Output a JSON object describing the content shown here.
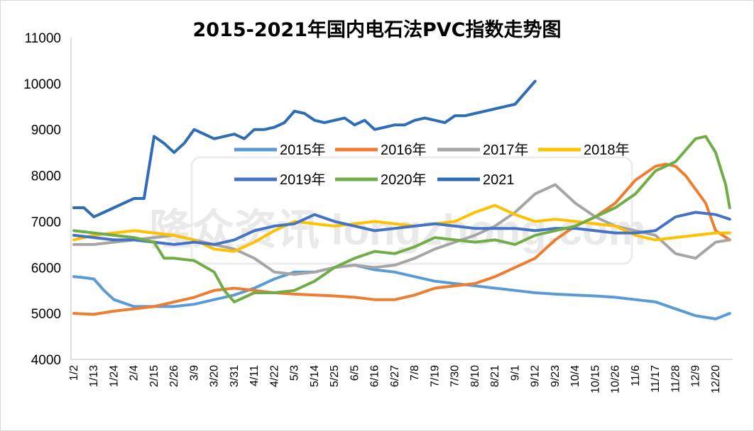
{
  "chart_data": {
    "type": "line",
    "title": "2015-2021年国内电石法PVC指数走势图",
    "ylim": [
      4000,
      11000
    ],
    "yticks": [
      4000,
      5000,
      6000,
      7000,
      8000,
      9000,
      10000,
      11000
    ],
    "xticks": [
      "1/2",
      "1/13",
      "1/24",
      "2/4",
      "2/15",
      "2/26",
      "3/9",
      "3/20",
      "3/31",
      "4/11",
      "4/22",
      "5/3",
      "5/14",
      "5/25",
      "6/5",
      "6/16",
      "6/27",
      "7/8",
      "7/19",
      "7/30",
      "8/10",
      "8/21",
      "9/1",
      "9/12",
      "9/23",
      "10/4",
      "10/15",
      "10/26",
      "11/6",
      "11/17",
      "11/28",
      "12/9",
      "12/20"
    ],
    "grid": false,
    "legend_position": "center-right",
    "series": [
      {
        "name": "2015年",
        "color": "#5b9bd5",
        "x": [
          0,
          0.5,
          1,
          1.5,
          2,
          3,
          4,
          5,
          6,
          7,
          8,
          9,
          10,
          11,
          12,
          13,
          14,
          15,
          16,
          17,
          18,
          19,
          20,
          21,
          22,
          23,
          24,
          25,
          26,
          27,
          28,
          29,
          30,
          31,
          32,
          32.7
        ],
        "y": [
          5800,
          5780,
          5750,
          5500,
          5300,
          5150,
          5150,
          5150,
          5200,
          5300,
          5400,
          5550,
          5750,
          5900,
          5900,
          6000,
          6050,
          5950,
          5900,
          5800,
          5700,
          5650,
          5600,
          5550,
          5500,
          5450,
          5420,
          5400,
          5380,
          5350,
          5300,
          5250,
          5100,
          4950,
          4880,
          5000
        ]
      },
      {
        "name": "2016年",
        "color": "#ed7d31",
        "x": [
          0,
          1,
          2,
          3,
          4,
          5,
          6,
          7,
          8,
          9,
          10,
          11,
          12,
          13,
          14,
          15,
          16,
          17,
          18,
          19,
          20,
          21,
          22,
          23,
          24,
          25,
          26,
          27,
          28,
          29,
          29.5,
          30,
          30.5,
          31,
          31.5,
          32,
          32.7
        ],
        "y": [
          5000,
          4980,
          5050,
          5100,
          5150,
          5250,
          5350,
          5500,
          5550,
          5500,
          5450,
          5420,
          5400,
          5380,
          5350,
          5300,
          5300,
          5400,
          5550,
          5600,
          5650,
          5800,
          6000,
          6200,
          6600,
          6900,
          7100,
          7400,
          7900,
          8200,
          8250,
          8200,
          8000,
          7700,
          7400,
          6800,
          6600
        ]
      },
      {
        "name": "2017年",
        "color": "#a5a5a5",
        "x": [
          0,
          1,
          2,
          3,
          4,
          5,
          6,
          7,
          8,
          9,
          10,
          11,
          12,
          13,
          14,
          15,
          16,
          17,
          18,
          19,
          20,
          21,
          22,
          23,
          24,
          25,
          26,
          27,
          28,
          29,
          30,
          31,
          32,
          32.7
        ],
        "y": [
          6500,
          6500,
          6550,
          6600,
          6650,
          6700,
          6600,
          6500,
          6400,
          6200,
          5900,
          5850,
          5900,
          6000,
          6050,
          6000,
          6050,
          6200,
          6400,
          6550,
          6700,
          6900,
          7200,
          7600,
          7800,
          7400,
          7100,
          6900,
          6800,
          6700,
          6300,
          6200,
          6550,
          6600
        ]
      },
      {
        "name": "2018年",
        "color": "#ffc000",
        "x": [
          0,
          1,
          2,
          3,
          4,
          5,
          6,
          7,
          8,
          9,
          10,
          11,
          12,
          13,
          14,
          15,
          16,
          17,
          18,
          19,
          20,
          21,
          22,
          23,
          24,
          25,
          26,
          27,
          28,
          29,
          30,
          31,
          32,
          32.7
        ],
        "y": [
          6600,
          6700,
          6750,
          6800,
          6750,
          6700,
          6600,
          6400,
          6350,
          6550,
          6800,
          7000,
          6950,
          6900,
          6950,
          7000,
          6950,
          6900,
          6950,
          7000,
          7200,
          7350,
          7150,
          7000,
          7050,
          7000,
          6950,
          6900,
          6700,
          6600,
          6650,
          6700,
          6750,
          6750
        ]
      },
      {
        "name": "2019年",
        "color": "#4472c4",
        "x": [
          0,
          1,
          2,
          3,
          4,
          5,
          6,
          7,
          8,
          9,
          10,
          11,
          12,
          13,
          14,
          15,
          16,
          17,
          18,
          19,
          20,
          21,
          22,
          23,
          24,
          25,
          26,
          27,
          28,
          29,
          30,
          31,
          32,
          32.7
        ],
        "y": [
          6700,
          6650,
          6600,
          6600,
          6550,
          6500,
          6550,
          6500,
          6600,
          6800,
          6900,
          6950,
          7150,
          7000,
          6900,
          6800,
          6850,
          6900,
          6950,
          6900,
          6850,
          6850,
          6850,
          6800,
          6850,
          6850,
          6800,
          6750,
          6750,
          6800,
          7100,
          7200,
          7150,
          7050
        ]
      },
      {
        "name": "2020年",
        "color": "#70ad47",
        "x": [
          0,
          1,
          2,
          3,
          4,
          4.5,
          5,
          6,
          7,
          7.5,
          8,
          9,
          10,
          11,
          12,
          13,
          14,
          15,
          16,
          17,
          18,
          19,
          20,
          21,
          22,
          23,
          24,
          25,
          26,
          27,
          28,
          29,
          30,
          31,
          31.5,
          32,
          32.5,
          32.7
        ],
        "y": [
          6800,
          6750,
          6700,
          6650,
          6550,
          6200,
          6200,
          6150,
          5900,
          5500,
          5250,
          5450,
          5450,
          5500,
          5700,
          6000,
          6200,
          6350,
          6300,
          6450,
          6650,
          6600,
          6550,
          6600,
          6500,
          6700,
          6800,
          6900,
          7100,
          7300,
          7600,
          8100,
          8300,
          8800,
          8850,
          8500,
          7800,
          7300
        ]
      },
      {
        "name": "2021",
        "color": "#2e6db4",
        "x": [
          0,
          0.5,
          1,
          1.5,
          2,
          2.5,
          3,
          3.5,
          4,
          4.5,
          5,
          5.5,
          6,
          6.5,
          7,
          7.5,
          8,
          8.5,
          9,
          9.5,
          10,
          10.5,
          11,
          11.5,
          12,
          12.5,
          13,
          13.5,
          14,
          14.5,
          15,
          15.5,
          16,
          16.5,
          17,
          17.5,
          18,
          18.5,
          19,
          19.5,
          20,
          20.5,
          21,
          21.5,
          22,
          22.5,
          23
        ],
        "y": [
          7300,
          7300,
          7100,
          7200,
          7300,
          7400,
          7500,
          7500,
          8850,
          8700,
          8500,
          8700,
          9000,
          8900,
          8800,
          8850,
          8900,
          8800,
          9000,
          9000,
          9050,
          9150,
          9400,
          9350,
          9200,
          9150,
          9200,
          9250,
          9100,
          9200,
          9000,
          9050,
          9100,
          9100,
          9200,
          9250,
          9200,
          9150,
          9300,
          9300,
          9350,
          9400,
          9450,
          9500,
          9550,
          9800,
          10050
        ]
      }
    ],
    "watermark": "隆众资讯 longzhong.com"
  }
}
